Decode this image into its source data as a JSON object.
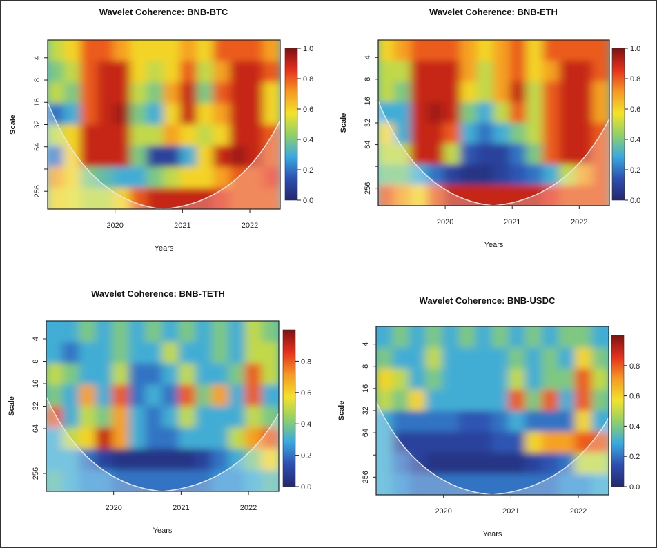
{
  "chart_data": [
    {
      "type": "heatmap",
      "title": "Wavelet Coherence: BNB-BTC",
      "xlabel": "Years",
      "ylabel": "Scale",
      "x_ticks": [
        "2020",
        "2021",
        "2022"
      ],
      "y_ticks": [
        "4",
        "8",
        "16",
        "32",
        "64",
        "256"
      ],
      "colorbar_ticks": [
        "0.0",
        "0.2",
        "0.4",
        "0.6",
        "0.8",
        "1.0"
      ],
      "xlim": [
        2019.0,
        2022.45
      ],
      "x": [
        2019.125,
        2019.375,
        2019.625,
        2019.875,
        2020.125,
        2020.375,
        2020.625,
        2020.875,
        2021.125,
        2021.375,
        2021.625,
        2021.875,
        2022.125,
        2022.375
      ],
      "y_scale": [
        3,
        6,
        11,
        23,
        45,
        90,
        181,
        362
      ],
      "z": [
        [
          0.5,
          0.6,
          0.8,
          0.8,
          0.7,
          0.6,
          0.6,
          0.6,
          0.7,
          0.6,
          0.8,
          0.8,
          0.8,
          0.7
        ],
        [
          0.4,
          0.5,
          0.8,
          0.9,
          0.9,
          0.6,
          0.5,
          0.6,
          0.8,
          0.5,
          0.7,
          0.9,
          0.9,
          0.8
        ],
        [
          0.5,
          0.4,
          0.8,
          0.9,
          0.9,
          0.5,
          0.4,
          0.7,
          0.9,
          0.4,
          0.8,
          0.9,
          0.9,
          0.6
        ],
        [
          0.2,
          0.3,
          0.8,
          0.9,
          0.95,
          0.4,
          0.3,
          0.6,
          0.9,
          0.6,
          0.7,
          0.9,
          0.9,
          0.6
        ],
        [
          0.5,
          0.6,
          0.9,
          0.9,
          0.9,
          0.5,
          0.5,
          0.7,
          0.6,
          0.5,
          0.6,
          0.9,
          0.9,
          0.8
        ],
        [
          0.2,
          0.6,
          0.9,
          0.9,
          0.9,
          0.4,
          0.1,
          0.1,
          0.3,
          0.6,
          0.9,
          0.95,
          0.9,
          0.8
        ],
        [
          0.7,
          0.6,
          0.4,
          0.35,
          0.3,
          0.3,
          0.4,
          0.5,
          0.6,
          0.6,
          0.7,
          0.8,
          0.8,
          0.85
        ],
        [
          0.6,
          0.55,
          0.5,
          0.5,
          0.6,
          0.8,
          0.9,
          0.9,
          0.9,
          0.9,
          0.85,
          0.8,
          0.8,
          0.8
        ]
      ]
    },
    {
      "type": "heatmap",
      "title": "Wavelet Coherence: BNB-ETH",
      "xlabel": "Years",
      "ylabel": "Scale",
      "x_ticks": [
        "2020",
        "2021",
        "2022"
      ],
      "y_ticks": [
        "4",
        "8",
        "16",
        "32",
        "64",
        "256"
      ],
      "colorbar_ticks": [
        "0.0",
        "0.2",
        "0.4",
        "0.6",
        "0.8",
        "1.0"
      ],
      "xlim": [
        2019.0,
        2022.45
      ],
      "x": [
        2019.125,
        2019.375,
        2019.625,
        2019.875,
        2020.125,
        2020.375,
        2020.625,
        2020.875,
        2021.125,
        2021.375,
        2021.625,
        2021.875,
        2022.125,
        2022.375
      ],
      "y_scale": [
        3,
        6,
        11,
        23,
        45,
        90,
        181,
        362
      ],
      "z": [
        [
          0.6,
          0.7,
          0.8,
          0.8,
          0.8,
          0.7,
          0.6,
          0.7,
          0.8,
          0.6,
          0.8,
          0.8,
          0.8,
          0.8
        ],
        [
          0.5,
          0.5,
          0.9,
          0.9,
          0.9,
          0.7,
          0.5,
          0.7,
          0.8,
          0.6,
          0.7,
          0.9,
          0.9,
          0.8
        ],
        [
          0.5,
          0.4,
          0.9,
          0.9,
          0.9,
          0.6,
          0.5,
          0.7,
          0.9,
          0.5,
          0.8,
          0.9,
          0.9,
          0.7
        ],
        [
          0.3,
          0.3,
          0.9,
          0.95,
          0.9,
          0.4,
          0.3,
          0.5,
          0.8,
          0.5,
          0.8,
          0.9,
          0.9,
          0.7
        ],
        [
          0.6,
          0.3,
          0.9,
          0.9,
          0.8,
          0.3,
          0.2,
          0.3,
          0.4,
          0.5,
          0.8,
          0.9,
          0.9,
          0.8
        ],
        [
          0.5,
          0.5,
          0.9,
          0.9,
          0.5,
          0.15,
          0.1,
          0.1,
          0.2,
          0.4,
          0.8,
          0.9,
          0.9,
          0.8
        ],
        [
          0.4,
          0.4,
          0.3,
          0.2,
          0.1,
          0.05,
          0.05,
          0.1,
          0.15,
          0.2,
          0.3,
          0.5,
          0.7,
          0.8
        ],
        [
          0.8,
          0.7,
          0.6,
          0.8,
          0.9,
          0.9,
          0.9,
          0.9,
          0.9,
          0.9,
          0.85,
          0.8,
          0.8,
          0.8
        ]
      ]
    },
    {
      "type": "heatmap",
      "title": "Wavelet Coherence: BNB-TETH",
      "xlabel": "Years",
      "ylabel": "Scale",
      "x_ticks": [
        "2020",
        "2021",
        "2022"
      ],
      "y_ticks": [
        "4",
        "8",
        "16",
        "32",
        "64",
        "256"
      ],
      "colorbar_ticks": [
        "0.0",
        "0.2",
        "0.4",
        "0.6",
        "0.8"
      ],
      "xlim": [
        2019.0,
        2022.45
      ],
      "x": [
        2019.125,
        2019.375,
        2019.625,
        2019.875,
        2020.125,
        2020.375,
        2020.625,
        2020.875,
        2021.125,
        2021.375,
        2021.625,
        2021.875,
        2022.125,
        2022.375
      ],
      "y_scale": [
        3,
        6,
        11,
        23,
        45,
        90,
        181,
        362
      ],
      "z": [
        [
          0.3,
          0.3,
          0.4,
          0.3,
          0.4,
          0.3,
          0.4,
          0.3,
          0.4,
          0.3,
          0.4,
          0.3,
          0.5,
          0.4
        ],
        [
          0.3,
          0.2,
          0.3,
          0.3,
          0.4,
          0.3,
          0.3,
          0.5,
          0.3,
          0.3,
          0.4,
          0.3,
          0.5,
          0.5
        ],
        [
          0.5,
          0.4,
          0.3,
          0.3,
          0.5,
          0.2,
          0.2,
          0.3,
          0.5,
          0.3,
          0.3,
          0.4,
          0.8,
          0.5
        ],
        [
          0.4,
          0.3,
          0.7,
          0.3,
          0.8,
          0.2,
          0.3,
          0.2,
          0.8,
          0.4,
          0.7,
          0.3,
          0.8,
          0.3
        ],
        [
          0.8,
          0.3,
          0.5,
          0.4,
          0.7,
          0.3,
          0.2,
          0.3,
          0.5,
          0.3,
          0.3,
          0.3,
          0.5,
          0.4
        ],
        [
          0.3,
          0.5,
          0.6,
          0.9,
          0.7,
          0.3,
          0.2,
          0.2,
          0.3,
          0.3,
          0.3,
          0.5,
          0.7,
          0.8
        ],
        [
          0.3,
          0.3,
          0.2,
          0.1,
          0.05,
          0.05,
          0.05,
          0.05,
          0.05,
          0.1,
          0.2,
          0.3,
          0.4,
          0.6
        ],
        [
          0.35,
          0.3,
          0.25,
          0.25,
          0.2,
          0.2,
          0.2,
          0.2,
          0.2,
          0.2,
          0.25,
          0.25,
          0.3,
          0.35
        ]
      ]
    },
    {
      "type": "heatmap",
      "title": "Wavelet Coherence: BNB-USDC",
      "xlabel": "Years",
      "ylabel": "Scale",
      "x_ticks": [
        "2020",
        "2021",
        "2022"
      ],
      "y_ticks": [
        "4",
        "8",
        "16",
        "32",
        "64",
        "256"
      ],
      "colorbar_ticks": [
        "0.0",
        "0.2",
        "0.4",
        "0.6",
        "0.8"
      ],
      "xlim": [
        2019.0,
        2022.45
      ],
      "x": [
        2019.125,
        2019.375,
        2019.625,
        2019.875,
        2020.125,
        2020.375,
        2020.625,
        2020.875,
        2021.125,
        2021.375,
        2021.625,
        2021.875,
        2022.125,
        2022.375
      ],
      "y_scale": [
        3,
        6,
        11,
        23,
        45,
        90,
        181,
        362
      ],
      "z": [
        [
          0.3,
          0.4,
          0.3,
          0.4,
          0.3,
          0.4,
          0.3,
          0.4,
          0.3,
          0.4,
          0.3,
          0.4,
          0.4,
          0.3
        ],
        [
          0.4,
          0.3,
          0.3,
          0.5,
          0.3,
          0.3,
          0.3,
          0.3,
          0.4,
          0.3,
          0.4,
          0.3,
          0.6,
          0.4
        ],
        [
          0.6,
          0.5,
          0.3,
          0.4,
          0.3,
          0.3,
          0.3,
          0.3,
          0.5,
          0.3,
          0.4,
          0.4,
          0.8,
          0.5
        ],
        [
          0.5,
          0.4,
          0.6,
          0.3,
          0.3,
          0.3,
          0.3,
          0.3,
          0.8,
          0.4,
          0.8,
          0.3,
          0.8,
          0.4
        ],
        [
          0.3,
          0.2,
          0.2,
          0.2,
          0.2,
          0.15,
          0.15,
          0.2,
          0.3,
          0.2,
          0.2,
          0.2,
          0.6,
          0.3
        ],
        [
          0.3,
          0.1,
          0.1,
          0.1,
          0.1,
          0.1,
          0.1,
          0.15,
          0.15,
          0.6,
          0.7,
          0.7,
          0.8,
          0.8
        ],
        [
          0.3,
          0.2,
          0.1,
          0.05,
          0.05,
          0.05,
          0.05,
          0.05,
          0.05,
          0.1,
          0.15,
          0.2,
          0.5,
          0.5
        ],
        [
          0.3,
          0.25,
          0.2,
          0.2,
          0.2,
          0.2,
          0.2,
          0.2,
          0.2,
          0.2,
          0.2,
          0.25,
          0.25,
          0.3
        ]
      ]
    }
  ],
  "colors": {
    "scale": [
      "#24286e",
      "#2d4fb0",
      "#39a9e0",
      "#8fd06a",
      "#f3e22a",
      "#f59a22",
      "#e5311c",
      "#7d1111"
    ],
    "coi": "#e6e6e6"
  }
}
